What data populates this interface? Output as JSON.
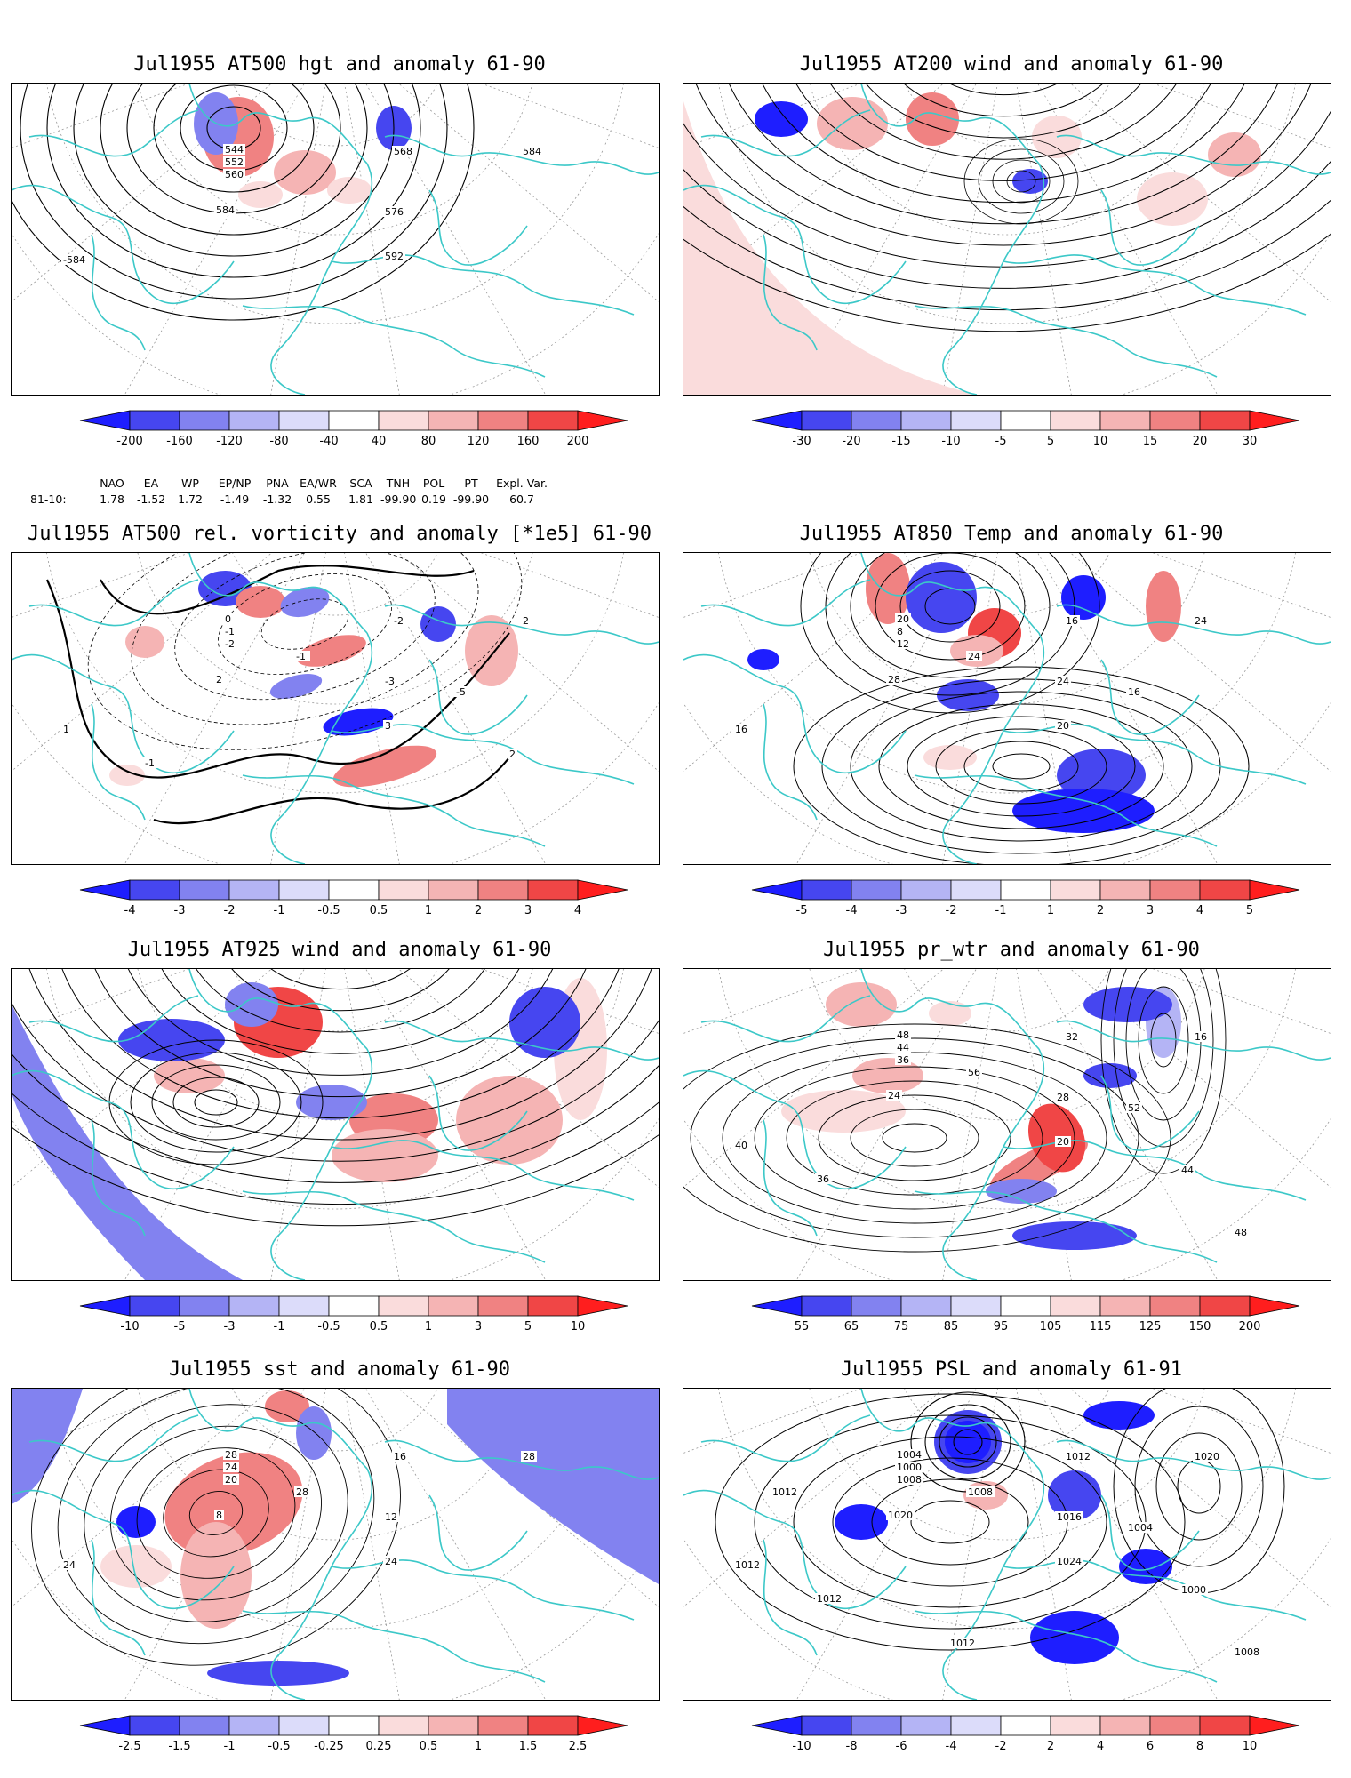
{
  "panels": [
    {
      "id": "hgt500",
      "title": "Jul1955 AT500 hgt and anomaly 61-90",
      "colorbar": {
        "labels": [
          "-200",
          "-160",
          "-120",
          "-80",
          "-40",
          "40",
          "80",
          "120",
          "160",
          "200"
        ]
      },
      "contour_labels": [
        "544",
        "552",
        "560",
        "568",
        "576",
        "584",
        "592",
        "584",
        "-584"
      ]
    },
    {
      "id": "wind200",
      "title": "Jul1955 AT200 wind and anomaly 61-90",
      "colorbar": {
        "labels": [
          "-30",
          "-20",
          "-15",
          "-10",
          "-5",
          "5",
          "10",
          "15",
          "20",
          "30"
        ]
      },
      "contour_labels": []
    },
    {
      "id": "vort500",
      "title": "Jul1955 AT500 rel. vorticity and anomaly [*1e5] 61-90",
      "colorbar": {
        "labels": [
          "-4",
          "-3",
          "-2",
          "-1",
          "-0.5",
          "0.5",
          "1",
          "2",
          "3",
          "4"
        ]
      },
      "contour_labels": [
        "0",
        "-1",
        "-2",
        "-2",
        "-3",
        "2",
        "3",
        "2",
        "1",
        "-1",
        "-5",
        "2",
        "-1"
      ]
    },
    {
      "id": "temp850",
      "title": "Jul1955 AT850 Temp and anomaly 61-90",
      "colorbar": {
        "labels": [
          "-5",
          "-4",
          "-3",
          "-2",
          "-1",
          "1",
          "2",
          "3",
          "4",
          "5"
        ]
      },
      "contour_labels": [
        "20",
        "8",
        "12",
        "16",
        "24",
        "28",
        "20",
        "24",
        "16",
        "24",
        "16"
      ]
    },
    {
      "id": "wind925",
      "title": "Jul1955 AT925 wind and anomaly 61-90",
      "colorbar": {
        "labels": [
          "-10",
          "-5",
          "-3",
          "-1",
          "-0.5",
          "0.5",
          "1",
          "3",
          "5",
          "10"
        ]
      },
      "contour_labels": []
    },
    {
      "id": "prwtr",
      "title": "Jul1955 pr_wtr and anomaly 61-90",
      "colorbar": {
        "labels": [
          "55",
          "65",
          "75",
          "85",
          "95",
          "105",
          "115",
          "125",
          "150",
          "200"
        ]
      },
      "contour_labels": [
        "48",
        "44",
        "36",
        "32",
        "28",
        "24",
        "20",
        "16",
        "40",
        "56",
        "52",
        "44",
        "36",
        "48"
      ]
    },
    {
      "id": "sst",
      "title": "Jul1955 sst and anomaly 61-90",
      "colorbar": {
        "labels": [
          "-2.5",
          "-1.5",
          "-1",
          "-0.5",
          "-0.25",
          "0.25",
          "0.5",
          "1",
          "1.5",
          "2.5"
        ]
      },
      "contour_labels": [
        "28",
        "24",
        "20",
        "16",
        "12",
        "8",
        "24",
        "28",
        "24",
        "28"
      ]
    },
    {
      "id": "psl",
      "title": "Jul1955 PSL and anomaly 61-91",
      "colorbar": {
        "labels": [
          "-10",
          "-8",
          "-6",
          "-4",
          "-2",
          "2",
          "4",
          "6",
          "8",
          "10"
        ]
      },
      "contour_labels": [
        "1004",
        "1000",
        "1008",
        "1012",
        "1016",
        "1020",
        "1024",
        "1020",
        "1012",
        "1008",
        "1004",
        "1000",
        "1012",
        "1008",
        "1012",
        "1012"
      ]
    }
  ],
  "teleconnections": {
    "header": [
      "NAO",
      "EA",
      "WP",
      "EP/NP",
      "PNA",
      "EA/WR",
      "SCA",
      "TNH",
      "POL",
      "PT",
      "Expl. Var."
    ],
    "row_label": "81-10:",
    "values": [
      "1.78",
      "-1.52",
      "1.72",
      "-1.49",
      "-1.32",
      "0.55",
      "1.81",
      "-99.90",
      "0.19",
      "-99.90",
      "60.7"
    ]
  },
  "colors": {
    "coast": "#3cc8c8",
    "contour": "#000000",
    "scale": [
      "#1e1eff",
      "#4646f0",
      "#8282f0",
      "#b4b4f5",
      "#dcdcfa",
      "#ffffff",
      "#fadcdc",
      "#f5b4b4",
      "#f08282",
      "#f04646",
      "#ff1e1e"
    ]
  }
}
